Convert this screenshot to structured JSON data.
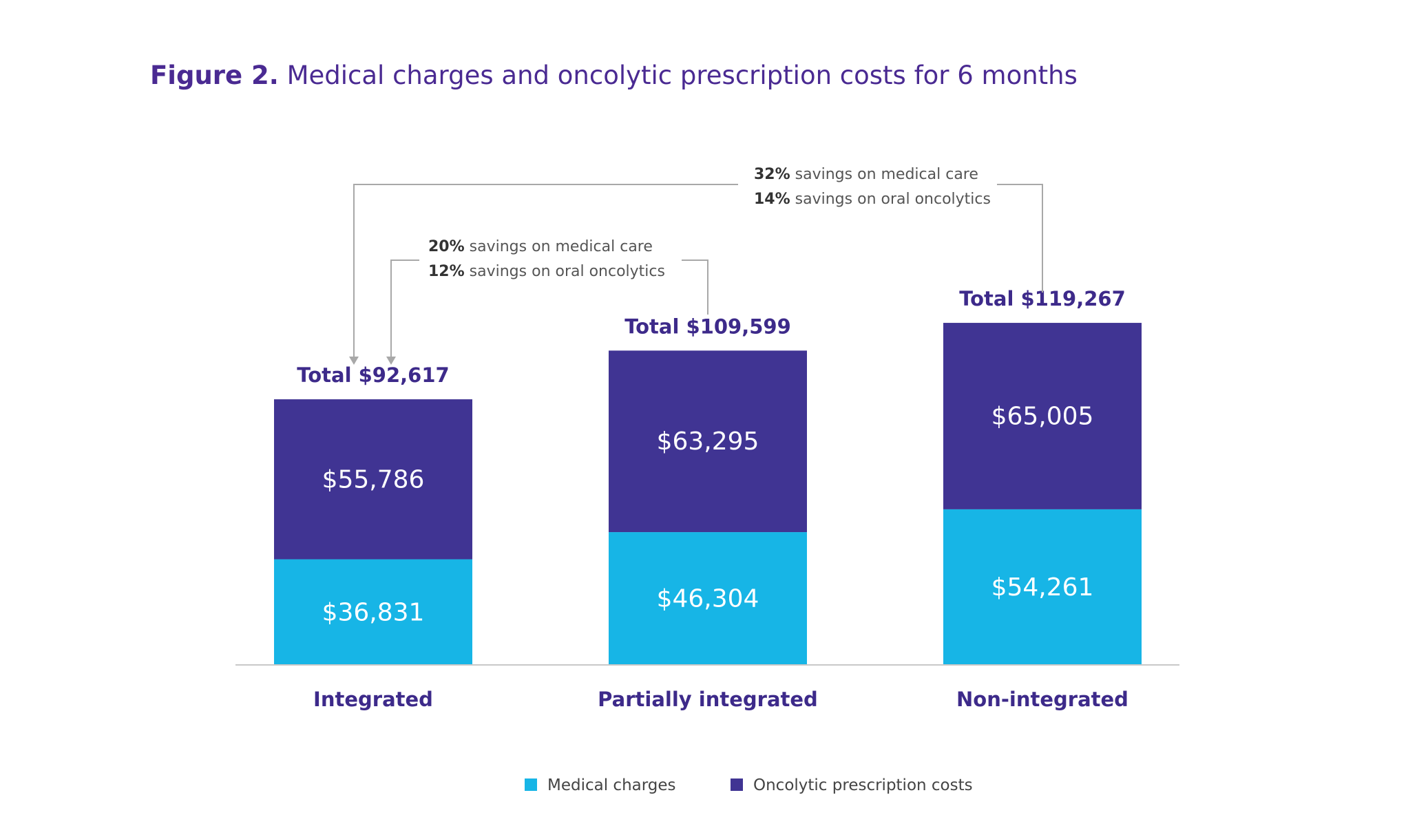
{
  "figure": {
    "label": "Figure 2.",
    "title": "Medical charges and oncolytic prescription costs for 6 months"
  },
  "colors": {
    "medical": "#17b5e6",
    "oncolytic": "#403493",
    "title": "#4a2a92",
    "axis": "#c8c8c8",
    "bracket": "#a8a8a8"
  },
  "chart_data": {
    "type": "bar",
    "stacked": true,
    "categories": [
      "Integrated",
      "Partially integrated",
      "Non-integrated"
    ],
    "series": [
      {
        "name": "Medical charges",
        "values": [
          36831,
          46304,
          54261
        ],
        "labels": [
          "$36,831",
          "$46,304",
          "$54,261"
        ]
      },
      {
        "name": "Oncolytic prescription costs",
        "values": [
          55786,
          63295,
          65005
        ],
        "labels": [
          "$55,786",
          "$63,295",
          "$65,005"
        ]
      }
    ],
    "totals": [
      "Total $92,617",
      "Total $109,599",
      "Total $119,267"
    ],
    "ylim": [
      0,
      120000
    ],
    "grid": false,
    "legend_position": "bottom",
    "annotations": [
      {
        "lines": [
          {
            "pct": "20%",
            "text": " savings on medical care"
          },
          {
            "pct": "12%",
            "text": " savings on oral oncolytics"
          }
        ],
        "from": "Partially integrated",
        "to": "Integrated"
      },
      {
        "lines": [
          {
            "pct": "32%",
            "text": " savings on medical care"
          },
          {
            "pct": "14%",
            "text": " savings on oral oncolytics"
          }
        ],
        "from": "Non-integrated",
        "to": "Integrated"
      }
    ]
  }
}
